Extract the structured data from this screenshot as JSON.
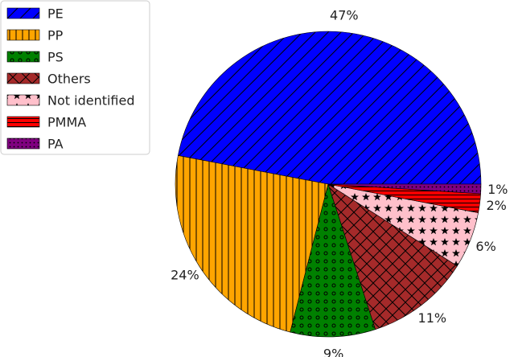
{
  "chart_data": {
    "type": "pie",
    "title": "",
    "slices": [
      {
        "label": "PE",
        "value": 47,
        "display": "47%",
        "color": "#0000ff",
        "hatch": "diagonal"
      },
      {
        "label": "PP",
        "value": 24,
        "display": "24%",
        "color": "#ffa500",
        "hatch": "vertical"
      },
      {
        "label": "PS",
        "value": 9,
        "display": "9%",
        "color": "#008000",
        "hatch": "circles"
      },
      {
        "label": "Others",
        "value": 11,
        "display": "11%",
        "color": "#a52a2a",
        "hatch": "crosshatch"
      },
      {
        "label": "Not identified",
        "value": 6,
        "display": "6%",
        "color": "#ffc0cb",
        "hatch": "stars"
      },
      {
        "label": "PMMA",
        "value": 2,
        "display": "2%",
        "color": "#ff0000",
        "hatch": "horizontal"
      },
      {
        "label": "PA",
        "value": 1,
        "display": "1%",
        "color": "#800080",
        "hatch": "dots"
      }
    ],
    "start_angle_deg": 0,
    "direction": "counterclockwise",
    "legend_position": "top-left"
  }
}
